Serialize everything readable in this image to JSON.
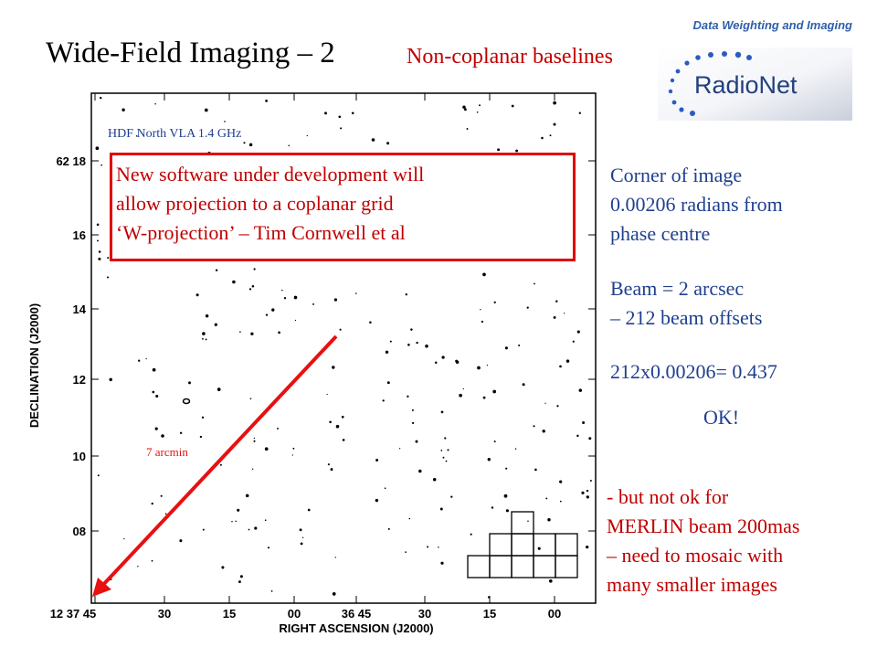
{
  "header": {
    "tag": "Data Weighting and Imaging",
    "title": "Wide-Field Imaging – 2",
    "subtitle": "Non-coplanar baselines"
  },
  "logo": {
    "text": "RadioNet",
    "colors": {
      "star": "#2a5cc0",
      "text": "#22407d"
    }
  },
  "figure": {
    "image_label": "HDF North VLA 1.4 GHz",
    "ylabel": "DECLINATION (J2000)",
    "xlabel": "RIGHT ASCENSION (J2000)",
    "y_ticks": [
      "62 18",
      "16",
      "14",
      "12",
      "10",
      "08"
    ],
    "x_ticks": [
      "12 37 45",
      "30",
      "15",
      "00",
      "36 45",
      "30",
      "15",
      "00"
    ],
    "arrow_label": "7 arcmin",
    "arrow_color": "#e81010"
  },
  "overlay": {
    "lines": [
      "New software under development will",
      "allow projection to a coplanar grid",
      "‘W-projection’ – Tim Cornwell et al"
    ],
    "color": "#c00000"
  },
  "side": {
    "corner": [
      "Corner of image",
      "0.00206 radians from",
      "phase centre"
    ],
    "beam": [
      "Beam = 2 arcsec",
      "– 212 beam offsets"
    ],
    "calc": "212x0.00206= 0.437",
    "ok": "OK!",
    "merlin": [
      "- but not ok for",
      "MERLIN beam 200mas",
      "– need to mosaic with",
      "many smaller images"
    ]
  }
}
